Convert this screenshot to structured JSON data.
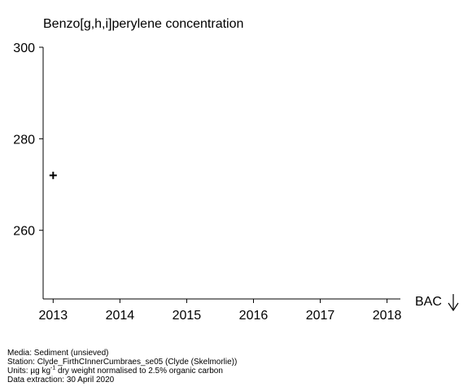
{
  "chart_data": {
    "type": "scatter",
    "title": "Benzo[g,h,i]perylene concentration",
    "x_ticks": [
      "2013",
      "2014",
      "2015",
      "2016",
      "2017",
      "2018"
    ],
    "y_ticks": [
      260,
      280,
      300
    ],
    "xlim": [
      2012.85,
      2018.2
    ],
    "ylim": [
      245,
      300
    ],
    "points": [
      {
        "x": 2013,
        "y": 272
      }
    ],
    "marker": "+",
    "annotation": "BAC",
    "annotation_icon": "down-arrow-icon"
  },
  "footer": {
    "media": "Media: Sediment (unsieved)",
    "station": "Station: Clyde_FirthCInnerCumbraes_se05 (Clyde (Skelmorlie))",
    "units_prefix": "Units:  µg kg",
    "units_sup": "-1",
    "units_suffix": " dry weight normalised to 2.5% organic carbon",
    "extraction": "Data extraction: 30 April 2020"
  }
}
